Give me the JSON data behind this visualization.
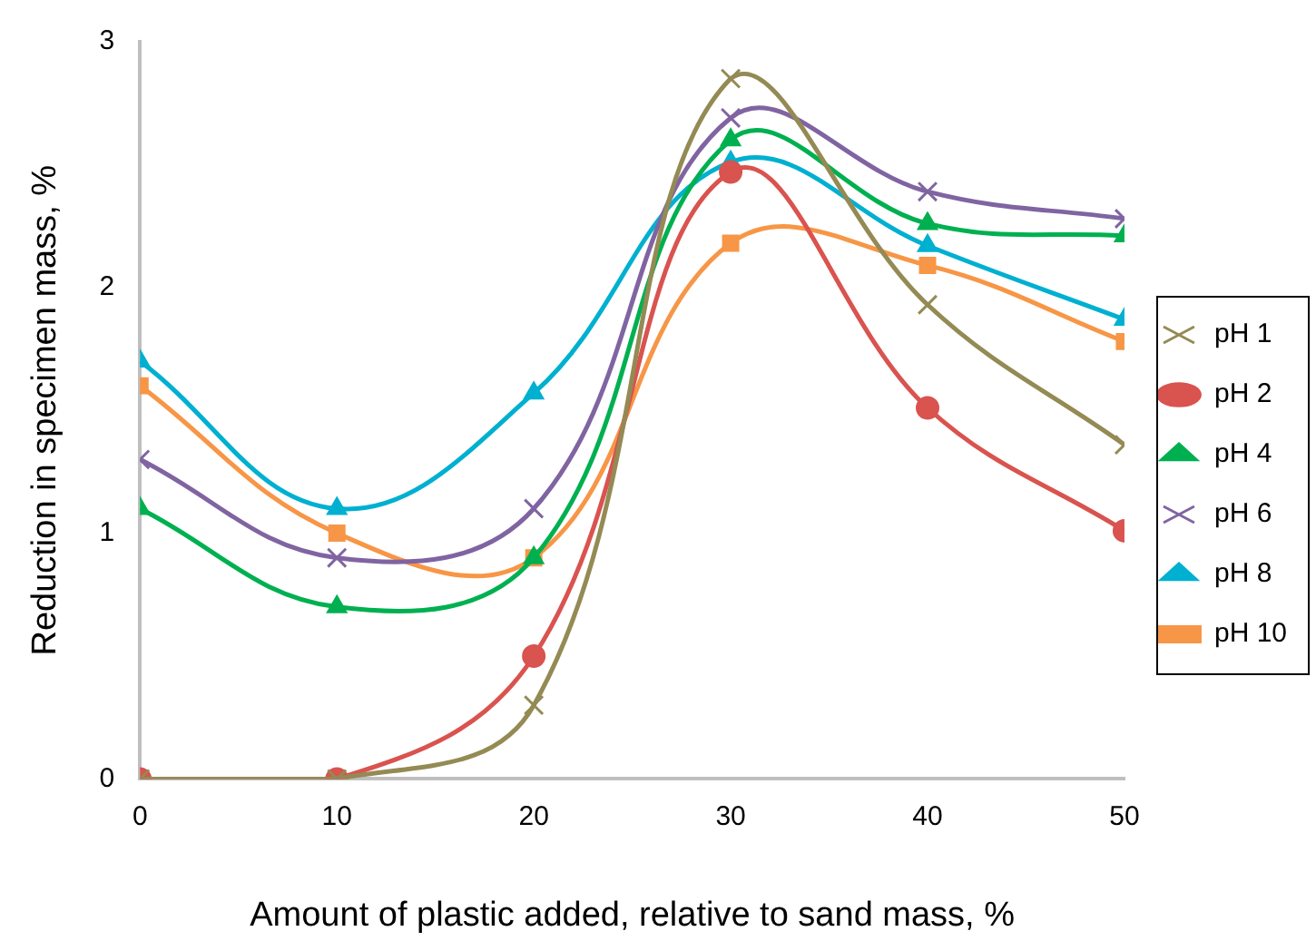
{
  "chart_data": {
    "type": "line",
    "xlabel": "Amount of plastic added, relative to sand mass, %",
    "ylabel": "Reduction in specimen mass, %",
    "x": [
      0,
      10,
      20,
      30,
      40,
      50
    ],
    "xlim": [
      0,
      50
    ],
    "xticks": [
      0,
      10,
      20,
      30,
      40,
      50
    ],
    "ylim": [
      0,
      3
    ],
    "yticks": [
      0,
      1,
      2,
      3
    ],
    "grid": false,
    "legend": "right",
    "series": [
      {
        "name": "pH 1",
        "color": "#948a54",
        "marker": "cross",
        "values": [
          0,
          0,
          0.3,
          2.85,
          1.93,
          1.36
        ]
      },
      {
        "name": "pH 2",
        "color": "#d9534f",
        "marker": "circle",
        "values": [
          0,
          0,
          0.5,
          2.47,
          1.51,
          1.01
        ]
      },
      {
        "name": "pH 4",
        "color": "#00b050",
        "marker": "triangle",
        "values": [
          1.1,
          0.7,
          0.9,
          2.6,
          2.26,
          2.21
        ]
      },
      {
        "name": "pH 6",
        "color": "#8064a2",
        "marker": "cross",
        "values": [
          1.3,
          0.9,
          1.1,
          2.69,
          2.39,
          2.28
        ]
      },
      {
        "name": "pH 8",
        "color": "#00b0d0",
        "marker": "triangle",
        "values": [
          1.7,
          1.1,
          1.57,
          2.51,
          2.17,
          1.87
        ]
      },
      {
        "name": "pH 10",
        "color": "#f79646",
        "marker": "square",
        "values": [
          1.6,
          1.0,
          0.9,
          2.18,
          2.09,
          1.78
        ]
      }
    ]
  }
}
